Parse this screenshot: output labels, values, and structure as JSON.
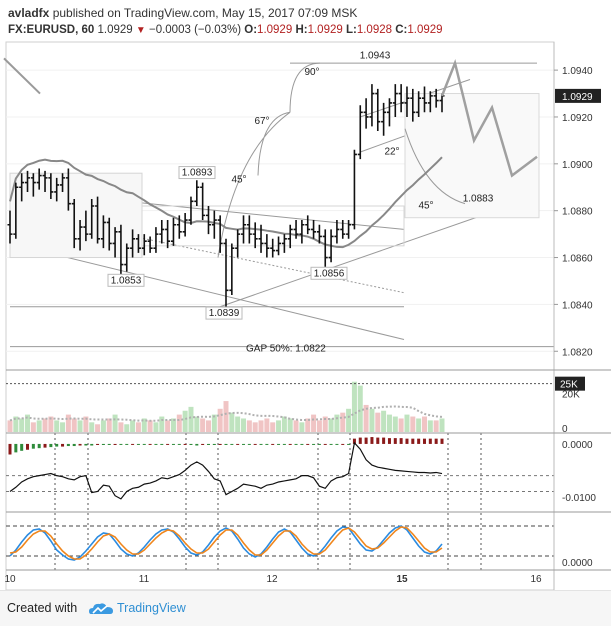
{
  "header": {
    "author": "avladfx",
    "published": "published on TradingView.com, May 15, 2017 07:09 MSK",
    "symbol": "FX:EURUSD, 60",
    "last": "1.0929",
    "change": "−0.0003 (−0.03%)",
    "o_label": "O:",
    "o": "1.0929",
    "h_label": "H:",
    "h": "1.0929",
    "l_label": "L:",
    "l": "1.0928",
    "c_label": "C:",
    "c": "1.0929"
  },
  "footer": {
    "created_with": "Created with",
    "brand": "TradingView"
  },
  "colors": {
    "bar": "#111111",
    "ma": "#888888",
    "drawing": "#9a9a9a",
    "price_badge": "#222222",
    "macd_up": "#2e8b3a",
    "macd_down": "#8b1a1a",
    "volume_up": "#bfe3bf",
    "volume_down": "#f0c4c4",
    "blue": "#2b8be0",
    "orange": "#f0861c"
  },
  "chart_data": [
    {
      "type": "line",
      "name": "price",
      "x_labels": [
        "10",
        "11",
        "12",
        "15",
        "16"
      ],
      "ylim": [
        1.0812,
        1.0952
      ],
      "y_ticks": [
        "1.0940",
        "1.0920",
        "1.0900",
        "1.0880",
        "1.0860",
        "1.0840",
        "1.0820"
      ],
      "current_price": "1.0929",
      "ohlc_bars": [
        [
          1.0874,
          1.088,
          1.0866,
          1.087
        ],
        [
          1.087,
          1.0892,
          1.0868,
          1.089
        ],
        [
          1.089,
          1.0896,
          1.0884,
          1.0892
        ],
        [
          1.0892,
          1.0897,
          1.0888,
          1.0894
        ],
        [
          1.0894,
          1.0896,
          1.0886,
          1.0892
        ],
        [
          1.0892,
          1.0898,
          1.0889,
          1.0895
        ],
        [
          1.0895,
          1.0897,
          1.0888,
          1.0894
        ],
        [
          1.0894,
          1.0896,
          1.0885,
          1.0888
        ],
        [
          1.0888,
          1.0894,
          1.0884,
          1.0891
        ],
        [
          1.0891,
          1.0896,
          1.0888,
          1.0894
        ],
        [
          1.0894,
          1.0898,
          1.088,
          1.0883
        ],
        [
          1.0883,
          1.0885,
          1.0864,
          1.0868
        ],
        [
          1.0868,
          1.0876,
          1.0863,
          1.0873
        ],
        [
          1.0873,
          1.088,
          1.0867,
          1.087
        ],
        [
          1.087,
          1.0885,
          1.0868,
          1.0882
        ],
        [
          1.0882,
          1.0886,
          1.0866,
          1.0868
        ],
        [
          1.0868,
          1.0878,
          1.0864,
          1.0875
        ],
        [
          1.0875,
          1.0877,
          1.0863,
          1.0866
        ],
        [
          1.0866,
          1.0873,
          1.086,
          1.0871
        ],
        [
          1.0871,
          1.0874,
          1.0853,
          1.0857
        ],
        [
          1.0857,
          1.0866,
          1.0854,
          1.0864
        ],
        [
          1.0864,
          1.0872,
          1.086,
          1.0868
        ],
        [
          1.0868,
          1.087,
          1.0862,
          1.0864
        ],
        [
          1.0864,
          1.087,
          1.0861,
          1.0867
        ],
        [
          1.0867,
          1.0869,
          1.0862,
          1.0864
        ],
        [
          1.0864,
          1.0873,
          1.0862,
          1.087
        ],
        [
          1.087,
          1.0876,
          1.0866,
          1.0872
        ],
        [
          1.0872,
          1.0876,
          1.0864,
          1.0867
        ],
        [
          1.0867,
          1.0877,
          1.0865,
          1.0874
        ],
        [
          1.0874,
          1.0878,
          1.0868,
          1.0871
        ],
        [
          1.0871,
          1.0879,
          1.0869,
          1.0876
        ],
        [
          1.0876,
          1.0886,
          1.0874,
          1.0884
        ],
        [
          1.0884,
          1.0893,
          1.0882,
          1.089
        ],
        [
          1.089,
          1.0892,
          1.0876,
          1.0878
        ],
        [
          1.0878,
          1.0882,
          1.087,
          1.0874
        ],
        [
          1.0874,
          1.088,
          1.0868,
          1.0876
        ],
        [
          1.0876,
          1.0878,
          1.0862,
          1.0866
        ],
        [
          1.0866,
          1.0868,
          1.0839,
          1.0846
        ],
        [
          1.0846,
          1.0866,
          1.0844,
          1.0864
        ],
        [
          1.0864,
          1.0872,
          1.086,
          1.087
        ],
        [
          1.087,
          1.0878,
          1.0866,
          1.0874
        ],
        [
          1.0874,
          1.0878,
          1.0866,
          1.087
        ],
        [
          1.087,
          1.0875,
          1.0864,
          1.0868
        ],
        [
          1.0868,
          1.0874,
          1.0862,
          1.0866
        ],
        [
          1.0866,
          1.087,
          1.086,
          1.0864
        ],
        [
          1.0864,
          1.0868,
          1.086,
          1.0863
        ],
        [
          1.0863,
          1.0869,
          1.0861,
          1.0866
        ],
        [
          1.0866,
          1.087,
          1.0862,
          1.0868
        ],
        [
          1.0868,
          1.0874,
          1.0864,
          1.0872
        ],
        [
          1.0872,
          1.0876,
          1.0868,
          1.087
        ],
        [
          1.087,
          1.0876,
          1.0866,
          1.0874
        ],
        [
          1.0874,
          1.0878,
          1.087,
          1.0872
        ],
        [
          1.0872,
          1.0876,
          1.0868,
          1.0871
        ],
        [
          1.0871,
          1.0874,
          1.0866,
          1.0869
        ],
        [
          1.0869,
          1.0872,
          1.0856,
          1.086
        ],
        [
          1.086,
          1.0872,
          1.0858,
          1.0869
        ],
        [
          1.0869,
          1.0876,
          1.0866,
          1.0872
        ],
        [
          1.0872,
          1.0876,
          1.0868,
          1.087
        ],
        [
          1.087,
          1.0876,
          1.0868,
          1.0874
        ],
        [
          1.0874,
          1.0906,
          1.0872,
          1.0904
        ],
        [
          1.0904,
          1.0925,
          1.0902,
          1.0922
        ],
        [
          1.0922,
          1.0928,
          1.0915,
          1.092
        ],
        [
          1.092,
          1.0934,
          1.0916,
          1.093
        ],
        [
          1.093,
          1.0932,
          1.0914,
          1.0918
        ],
        [
          1.0918,
          1.0926,
          1.0912,
          1.0922
        ],
        [
          1.0922,
          1.0928,
          1.0916,
          1.0926
        ],
        [
          1.0926,
          1.0934,
          1.092,
          1.093
        ],
        [
          1.093,
          1.0934,
          1.0922,
          1.0926
        ],
        [
          1.0926,
          1.0933,
          1.092,
          1.0928
        ],
        [
          1.0928,
          1.0932,
          1.0918,
          1.0922
        ],
        [
          1.0922,
          1.0931,
          1.092,
          1.0928
        ],
        [
          1.0928,
          1.0933,
          1.0922,
          1.0926
        ],
        [
          1.0926,
          1.0931,
          1.0922,
          1.0929
        ],
        [
          1.0929,
          1.0932,
          1.0924,
          1.0927
        ],
        [
          1.0927,
          1.093,
          1.0922,
          1.0929
        ]
      ],
      "annotations": [
        {
          "text": "1.0943",
          "price": 1.0943
        },
        {
          "text": "1.0893",
          "price": 1.0893
        },
        {
          "text": "1.0883",
          "price": 1.0883
        },
        {
          "text": "1.0853",
          "price": 1.0853
        },
        {
          "text": "1.0856",
          "price": 1.0856
        },
        {
          "text": "1.0839",
          "price": 1.0839
        },
        {
          "text": "GAP 50%: 1.0822",
          "price": 1.0822
        },
        {
          "text": "90°"
        },
        {
          "text": "67°"
        },
        {
          "text": "45°"
        },
        {
          "text": "22°"
        },
        {
          "text": "45°"
        }
      ],
      "projection": [
        1.0929,
        1.0943,
        1.091,
        1.0924,
        1.0895,
        1.0903
      ]
    },
    {
      "type": "bar",
      "name": "volume",
      "y_ticks": [
        "25K",
        "20K",
        "0"
      ],
      "ylim": [
        0,
        30000
      ],
      "values": [
        6000,
        8000,
        7000,
        9000,
        5000,
        6000,
        7000,
        8000,
        6000,
        5000,
        9000,
        7000,
        6000,
        8000,
        5000,
        4000,
        6000,
        7000,
        9000,
        5000,
        4000,
        6000,
        5000,
        7000,
        6000,
        5000,
        8000,
        6000,
        7000,
        9000,
        11000,
        13000,
        8000,
        7000,
        6000,
        9000,
        12000,
        16000,
        10000,
        8000,
        7000,
        6000,
        5000,
        6000,
        7000,
        5000,
        6000,
        8000,
        7000,
        6000,
        5000,
        7000,
        9000,
        6000,
        8000,
        7000,
        9000,
        10000,
        12000,
        26000,
        24000,
        14000,
        12000,
        10000,
        11000,
        9000,
        8000,
        7000,
        9000,
        8000,
        7000,
        8000,
        6000,
        6000,
        7000
      ],
      "dotted_level": 25000
    },
    {
      "type": "bar",
      "name": "macd",
      "y_ticks": [
        "0.0000",
        "-0.0100"
      ],
      "ylim": [
        -0.0125,
        0.0015
      ],
      "histogram": [
        -0.002,
        -0.0016,
        -0.0013,
        -0.0011,
        -0.0009,
        -0.0008,
        -0.0007,
        -0.0006,
        -0.0005,
        -0.0005,
        -0.0004,
        -0.0004,
        -0.0003,
        -0.0003,
        -0.0003,
        -0.0002,
        -0.0002,
        -0.0002,
        -0.0002,
        -0.0001,
        -0.0001,
        -0.0001,
        -0.0001,
        -0.0001,
        -0.0001,
        -0.0001,
        -0.0001,
        -0.0001,
        -0.0001,
        -0.0001,
        -0.0002,
        -0.0002,
        -0.0003,
        -0.0002,
        -0.0002,
        -0.0002,
        -0.0002,
        -0.0002,
        -0.0001,
        -0.0001,
        -0.0001,
        -0.0001,
        -0.0001,
        -0.0001,
        -0.0001,
        -0.0001,
        -0.0001,
        -0.0001,
        -0.0001,
        -0.0001,
        -0.0001,
        -0.0001,
        -0.0001,
        -0.0001,
        -0.0001,
        -0.0001,
        -0.0001,
        -0.0001,
        -0.0001,
        0.001,
        0.0012,
        0.0012,
        0.0013,
        0.0012,
        0.0012,
        0.0011,
        0.0011,
        0.0011,
        0.001,
        0.001,
        0.001,
        0.001,
        0.001,
        0.001,
        0.001
      ],
      "line": [
        -0.009,
        -0.0082,
        -0.0072,
        -0.0066,
        -0.0062,
        -0.006,
        -0.0058,
        -0.0056,
        -0.006,
        -0.0062,
        -0.0066,
        -0.0068,
        -0.0062,
        -0.006,
        -0.0092,
        -0.009,
        -0.0078,
        -0.008,
        -0.0098,
        -0.0104,
        -0.009,
        -0.0084,
        -0.0082,
        -0.0076,
        -0.0074,
        -0.007,
        -0.0064,
        -0.0066,
        -0.0062,
        -0.0058,
        -0.005,
        -0.004,
        -0.0034,
        -0.004,
        -0.0052,
        -0.0066,
        -0.007,
        -0.0096,
        -0.009,
        -0.0084,
        -0.0076,
        -0.0078,
        -0.008,
        -0.0084,
        -0.0078,
        -0.0076,
        -0.0072,
        -0.007,
        -0.0068,
        -0.0066,
        -0.006,
        -0.006,
        -0.0064,
        -0.008,
        -0.0084,
        -0.007,
        -0.0064,
        -0.0062,
        -0.0056,
        0.0002,
        -0.001,
        -0.003,
        -0.004,
        -0.0044,
        -0.0046,
        -0.0048,
        -0.005,
        -0.0051,
        -0.0052,
        -0.0053,
        -0.0054,
        -0.0054,
        -0.0055,
        -0.0054,
        -0.0056
      ],
      "dashed_levels": [
        -0.006,
        -0.009
      ]
    },
    {
      "type": "line",
      "name": "stochastic",
      "y_ticks": [
        "0.0000"
      ],
      "ylim": [
        0,
        100
      ],
      "series": [
        {
          "values": [
            20,
            32,
            48,
            62,
            72,
            74,
            66,
            50,
            32,
            22,
            14,
            12,
            18,
            30,
            44,
            58,
            66,
            64,
            50,
            34,
            24,
            20,
            26,
            38,
            52,
            64,
            72,
            74,
            68,
            54,
            38,
            26,
            22,
            28,
            42,
            58,
            70,
            76,
            70,
            54,
            36,
            24,
            18,
            24,
            38,
            54,
            68,
            74,
            68,
            52,
            36,
            24,
            20,
            26,
            40,
            56,
            70,
            78,
            76,
            60,
            44,
            32,
            30,
            38,
            52,
            66,
            76,
            80,
            72,
            56,
            40,
            28,
            24,
            30,
            44
          ]
        },
        {
          "values": [
            26,
            28,
            38,
            52,
            64,
            70,
            70,
            60,
            44,
            30,
            20,
            14,
            14,
            22,
            34,
            48,
            60,
            64,
            58,
            44,
            32,
            24,
            24,
            32,
            44,
            56,
            66,
            72,
            70,
            60,
            46,
            34,
            26,
            26,
            34,
            48,
            62,
            72,
            72,
            62,
            46,
            32,
            22,
            22,
            32,
            46,
            60,
            70,
            70,
            60,
            44,
            32,
            24,
            24,
            32,
            46,
            60,
            72,
            76,
            68,
            54,
            40,
            34,
            36,
            46,
            58,
            70,
            78,
            76,
            64,
            50,
            36,
            28,
            28,
            36
          ]
        }
      ],
      "dashed_levels": [
        80,
        20
      ]
    }
  ]
}
